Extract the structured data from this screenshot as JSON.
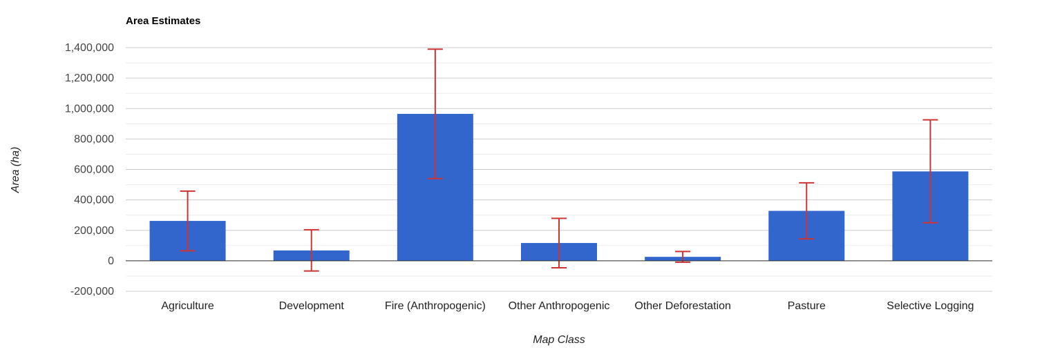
{
  "chart_data": {
    "type": "bar",
    "title": "Area Estimates",
    "xlabel": "Map Class",
    "ylabel": "Area (ha)",
    "categories": [
      "Agriculture",
      "Development",
      "Fire (Anthropogenic)",
      "Other Anthropogenic",
      "Other Deforestation",
      "Pasture",
      "Selective Logging"
    ],
    "values": [
      262000,
      68000,
      965000,
      117000,
      26000,
      328000,
      587000
    ],
    "error_low": [
      66000,
      -67000,
      540000,
      -46000,
      -9000,
      144000,
      250000
    ],
    "error_high": [
      458000,
      204000,
      1390000,
      279000,
      61000,
      512000,
      926000
    ],
    "ylim": [
      -200000,
      1400000
    ],
    "yticks": [
      -200000,
      0,
      200000,
      400000,
      600000,
      800000,
      1000000,
      1200000,
      1400000
    ],
    "ytick_labels": [
      "-200,000",
      "0",
      "200,000",
      "400,000",
      "600,000",
      "800,000",
      "1,000,000",
      "1,200,000",
      "1,400,000"
    ],
    "grid": true,
    "legend": "none",
    "colors": {
      "bar": "#3366cc",
      "error": "#cc3333",
      "grid": "#cccccc",
      "minor_grid": "#ebebeb",
      "baseline": "#333333"
    }
  }
}
